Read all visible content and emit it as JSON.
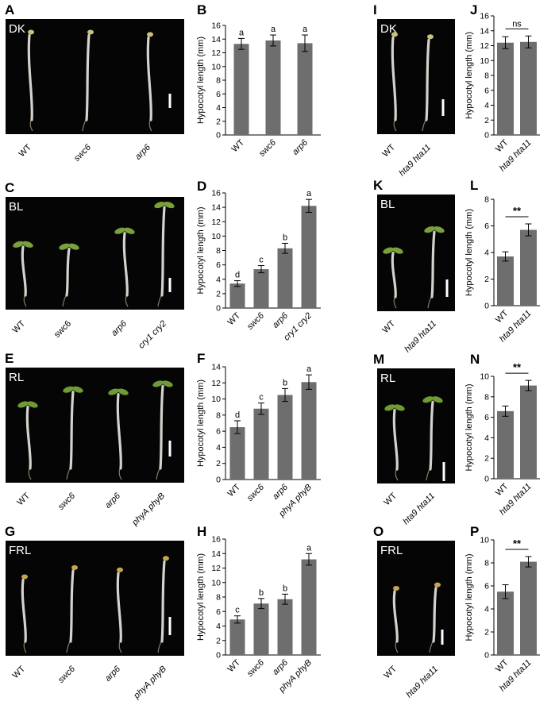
{
  "photos": [
    {
      "label": "A",
      "condition": "DK",
      "genotypes": [
        "WT",
        "swc6",
        "arp6"
      ],
      "italic": [
        false,
        true,
        true
      ],
      "cotyledon": "#c9c27a",
      "seedling_style": "etiolated"
    },
    {
      "label": "C",
      "condition": "BL",
      "genotypes": [
        "WT",
        "swc6",
        "arp6",
        "cry1 cry2"
      ],
      "italic": [
        false,
        false,
        true,
        true
      ],
      "cotyledon": "#7aa03c",
      "seedling_style": "green"
    },
    {
      "label": "E",
      "condition": "RL",
      "genotypes": [
        "WT",
        "swc6",
        "arp6",
        "phyA phyB"
      ],
      "italic": [
        false,
        true,
        true,
        true
      ],
      "cotyledon": "#6f9a34",
      "seedling_style": "green"
    },
    {
      "label": "G",
      "condition": "FRL",
      "genotypes": [
        "WT",
        "swc6",
        "arp6",
        "phyA phyB"
      ],
      "italic": [
        false,
        true,
        true,
        true
      ],
      "cotyledon": "#c8a452",
      "seedling_style": "etiolated"
    },
    {
      "label": "I",
      "condition": "DK",
      "genotypes": [
        "WT",
        "hta9 hta11"
      ],
      "italic": [
        false,
        true
      ],
      "cotyledon": "#c9c27a",
      "seedling_style": "etiolated"
    },
    {
      "label": "K",
      "condition": "BL",
      "genotypes": [
        "WT",
        "hta9 hta11"
      ],
      "italic": [
        false,
        true
      ],
      "cotyledon": "#7aa03c",
      "seedling_style": "green"
    },
    {
      "label": "M",
      "condition": "RL",
      "genotypes": [
        "WT",
        "hta9 hta11"
      ],
      "italic": [
        false,
        true
      ],
      "cotyledon": "#6f9a34",
      "seedling_style": "green"
    },
    {
      "label": "O",
      "condition": "FRL",
      "genotypes": [
        "WT",
        "hta9 hta11"
      ],
      "italic": [
        false,
        true
      ],
      "cotyledon": "#c8a452",
      "seedling_style": "etiolated"
    }
  ],
  "chart_data": [
    {
      "label": "B",
      "type": "bar",
      "categories": [
        "WT",
        "swc6",
        "arp6"
      ],
      "italic": [
        false,
        true,
        true
      ],
      "values": [
        13.3,
        13.8,
        13.4
      ],
      "errors": [
        0.8,
        0.8,
        1.2
      ],
      "ylabel": "Hypocotyl length (mm)",
      "ylim": [
        0,
        16
      ],
      "yticks": [
        0,
        2,
        4,
        6,
        8,
        10,
        12,
        14,
        16
      ],
      "letters": [
        "a",
        "a",
        "a"
      ]
    },
    {
      "label": "D",
      "type": "bar",
      "categories": [
        "WT",
        "swc6",
        "arp6",
        "cry1 cry2"
      ],
      "italic": [
        false,
        true,
        true,
        true
      ],
      "values": [
        3.4,
        5.4,
        8.3,
        14.2
      ],
      "errors": [
        0.4,
        0.5,
        0.7,
        0.9
      ],
      "ylabel": "Hypocotyl length (mm)",
      "ylim": [
        0,
        16
      ],
      "yticks": [
        0,
        2,
        4,
        6,
        8,
        10,
        12,
        14,
        16
      ],
      "letters": [
        "d",
        "c",
        "b",
        "a"
      ]
    },
    {
      "label": "F",
      "type": "bar",
      "categories": [
        "WT",
        "swc6",
        "arp6",
        "phyA phyB"
      ],
      "italic": [
        false,
        true,
        true,
        true
      ],
      "values": [
        6.5,
        8.8,
        10.5,
        12.1
      ],
      "errors": [
        0.8,
        0.7,
        0.8,
        0.9
      ],
      "ylabel": "Hypocotyl length (mm)",
      "ylim": [
        0,
        14
      ],
      "yticks": [
        0,
        2,
        4,
        6,
        8,
        10,
        12,
        14
      ],
      "letters": [
        "d",
        "c",
        "b",
        "a"
      ]
    },
    {
      "label": "H",
      "type": "bar",
      "categories": [
        "WT",
        "swc6",
        "arp6",
        "phyA phyB"
      ],
      "italic": [
        false,
        true,
        true,
        true
      ],
      "values": [
        4.9,
        7.1,
        7.7,
        13.2
      ],
      "errors": [
        0.5,
        0.7,
        0.7,
        0.8
      ],
      "ylabel": "Hypocotyl length (mm)",
      "ylim": [
        0,
        16
      ],
      "yticks": [
        0,
        2,
        4,
        6,
        8,
        10,
        12,
        14,
        16
      ],
      "letters": [
        "c",
        "b",
        "b",
        "a"
      ]
    },
    {
      "label": "J",
      "type": "bar",
      "categories": [
        "WT",
        "hta9 hta11"
      ],
      "italic": [
        false,
        true
      ],
      "values": [
        12.4,
        12.5
      ],
      "errors": [
        0.8,
        0.8
      ],
      "ylabel": "Hypocotyl length (mm)",
      "ylim": [
        0,
        16
      ],
      "yticks": [
        0,
        2,
        4,
        6,
        8,
        10,
        12,
        14,
        16
      ],
      "significance": "ns"
    },
    {
      "label": "L",
      "type": "bar",
      "categories": [
        "WT",
        "hta9 hta11"
      ],
      "italic": [
        false,
        true
      ],
      "values": [
        3.7,
        5.7
      ],
      "errors": [
        0.35,
        0.45
      ],
      "ylabel": "Hypocotyl length (mm)",
      "ylim": [
        0,
        8
      ],
      "yticks": [
        0,
        2,
        4,
        6,
        8
      ],
      "significance": "**"
    },
    {
      "label": "N",
      "type": "bar",
      "categories": [
        "WT",
        "hta9 hta11"
      ],
      "italic": [
        false,
        true
      ],
      "values": [
        6.6,
        9.1
      ],
      "errors": [
        0.5,
        0.5
      ],
      "ylabel": "Hypocotyl length (mm)",
      "ylim": [
        0,
        10
      ],
      "yticks": [
        0,
        2,
        4,
        6,
        8,
        10
      ],
      "significance": "**"
    },
    {
      "label": "P",
      "type": "bar",
      "categories": [
        "WT",
        "hta9 hta11"
      ],
      "italic": [
        false,
        true
      ],
      "values": [
        5.5,
        8.1
      ],
      "errors": [
        0.6,
        0.45
      ],
      "ylabel": "Hypocotyl length (mm)",
      "ylim": [
        0,
        10
      ],
      "yticks": [
        0,
        2,
        4,
        6,
        8,
        10
      ],
      "significance": "**"
    }
  ],
  "colors": {
    "bar": "#6e6e6e",
    "photo_bg": "#050505",
    "hypocotyl": "#d4d2cc"
  }
}
